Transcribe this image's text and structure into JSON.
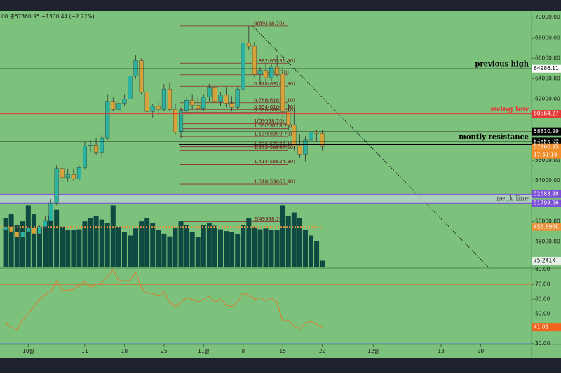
{
  "chart_data": {
    "type": "candlestick",
    "header": "00  종57360.95  −1300.44 (−2.22%)",
    "up_color": "#2ab3a0",
    "down_color": "#d6a23a",
    "open": [
      49200,
      49500,
      49000,
      48500,
      49000,
      49400,
      48800,
      49500,
      50100,
      51800,
      55200,
      54300,
      54600,
      54200,
      55300,
      57400,
      57500,
      56800,
      58200,
      61800,
      61000,
      61600,
      62000,
      64300,
      65800,
      62700,
      60800,
      61300,
      61000,
      63000,
      61000,
      58800,
      60900,
      61900,
      61400,
      61100,
      62200,
      63200,
      61800,
      62400,
      61600,
      61200,
      63000,
      67500,
      67200,
      64500,
      64800,
      64100,
      65200,
      64500,
      60800,
      59500,
      57400,
      56600,
      58000,
      58800,
      58661.39
    ],
    "high": [
      49800,
      50000,
      49500,
      49200,
      49800,
      50200,
      49600,
      50500,
      52200,
      55500,
      55800,
      55200,
      55200,
      55600,
      57800,
      58000,
      58200,
      58500,
      62500,
      62200,
      62000,
      62500,
      64500,
      66300,
      66000,
      63000,
      61500,
      61800,
      63500,
      63600,
      61500,
      61200,
      62200,
      62500,
      62300,
      62500,
      63500,
      63600,
      62700,
      63200,
      62300,
      63200,
      68000,
      69198.7,
      67600,
      65200,
      65600,
      65500,
      66300,
      65200,
      61500,
      61000,
      58600,
      58400,
      59200,
      59000,
      59000
    ],
    "low": [
      48600,
      48800,
      48200,
      48000,
      48800,
      48600,
      48400,
      49000,
      49800,
      51600,
      53800,
      53900,
      54000,
      54000,
      55100,
      56800,
      56500,
      56300,
      58000,
      60800,
      60600,
      61300,
      61800,
      64000,
      62500,
      60500,
      60200,
      60500,
      60800,
      60800,
      58500,
      58200,
      60500,
      61000,
      60600,
      60900,
      61800,
      61500,
      61300,
      61200,
      60800,
      61000,
      62800,
      66800,
      64200,
      63400,
      63700,
      63800,
      64200,
      60200,
      59000,
      57000,
      56200,
      55900,
      57200,
      57800,
      57000
    ],
    "close": [
      49500,
      49000,
      48500,
      49000,
      49400,
      48800,
      49500,
      50100,
      51800,
      55200,
      54300,
      54600,
      54200,
      55300,
      57400,
      57500,
      56800,
      58200,
      61800,
      61000,
      61600,
      62000,
      64300,
      65800,
      62700,
      60800,
      61300,
      61000,
      63000,
      61000,
      58800,
      60900,
      61900,
      61400,
      61100,
      62200,
      63200,
      61800,
      62400,
      61600,
      61200,
      63000,
      67500,
      67200,
      64500,
      64800,
      64100,
      65200,
      64500,
      60800,
      59500,
      57400,
      56600,
      58000,
      58800,
      58661.39,
      57360.95
    ],
    "countdown": "17:51:18",
    "ylim": [
      45500,
      70700
    ],
    "yticks": [
      {
        "value": 70000,
        "label": "70000.00"
      },
      {
        "value": 68000,
        "label": "68000.00"
      },
      {
        "value": 66000,
        "label": "66000.00"
      },
      {
        "value": 64000,
        "label": "64000.00"
      },
      {
        "value": 62000,
        "label": "62000.00"
      },
      {
        "value": 56000,
        "label": "56000.00"
      },
      {
        "value": 54000,
        "label": "54000.00"
      },
      {
        "value": 50000,
        "label": "50000.00"
      },
      {
        "value": 48000,
        "label": "48000.00"
      }
    ],
    "xlim": [
      -1,
      93
    ],
    "xticks": [
      {
        "value": 4,
        "label": "10월"
      },
      {
        "value": 14,
        "label": "11"
      },
      {
        "value": 21,
        "label": "18"
      },
      {
        "value": 28,
        "label": "25"
      },
      {
        "value": 35,
        "label": "11월"
      },
      {
        "value": 42,
        "label": "8"
      },
      {
        "value": 49,
        "label": "15"
      },
      {
        "value": 56,
        "label": "22"
      },
      {
        "value": 65,
        "label": "12월"
      },
      {
        "value": 77,
        "label": "13"
      },
      {
        "value": 84,
        "label": "20"
      }
    ],
    "levels": [
      {
        "name": "previous high",
        "value": 64986.11,
        "label": "64986.11",
        "color": "#000000"
      },
      {
        "name": "swing low",
        "value": 60564.27,
        "label": "60564.27",
        "color": "#e53935"
      },
      {
        "value": 58810.99,
        "label": "58810.99",
        "color": "#000000"
      },
      {
        "name": "montly resistance",
        "value": 57865,
        "label": "57865.00",
        "color": "#000000"
      },
      {
        "value": 57550,
        "label": "57550.00",
        "color": "#000000"
      }
    ],
    "neck_line": {
      "name": "neck line",
      "color": "#7b4fd6",
      "upper": {
        "value": 52683.98,
        "label": "52683.98"
      },
      "lower": {
        "value": 51799.56,
        "label": "51799.56"
      }
    },
    "fib_levels": [
      {
        "value": 69198.7,
        "label": "0(69198.70)"
      },
      {
        "value": 65531.5,
        "label": "0.382(65531.50)"
      },
      {
        "value": 64398.7,
        "label": "0.5(64398.70)"
      },
      {
        "value": 63265.9,
        "label": "0.618(63265.90)"
      },
      {
        "value": 61653.1,
        "label": "0.786(61653.10)"
      },
      {
        "value": 61000.3,
        "label": "0.854(61000.30)"
      },
      {
        "value": 60693.1,
        "label": "0.886(60693.10)"
      },
      {
        "value": 59598.7,
        "label": "1(59598.70)"
      },
      {
        "value": 59118.7,
        "label": "1.05(59118.70)"
      },
      {
        "value": 58350.7,
        "label": "1.13(58350.70)"
      },
      {
        "value": 57333.1,
        "label": "1.236(57333.10)"
      },
      {
        "value": 56987.5,
        "label": "1.272(56987.50)"
      },
      {
        "value": 55624.3,
        "label": "1.414(55624.30)"
      },
      {
        "value": 53665.9,
        "label": "1.618(53665.90)"
      },
      {
        "value": 49998.7,
        "label": "2(49998.70)"
      }
    ],
    "volume": [
      560,
      600,
      480,
      520,
      700,
      600,
      450,
      530,
      580,
      650,
      460,
      420,
      420,
      430,
      520,
      560,
      580,
      540,
      500,
      700,
      460,
      400,
      360,
      440,
      520,
      560,
      500,
      420,
      380,
      350,
      450,
      520,
      480,
      400,
      340,
      480,
      500,
      470,
      430,
      410,
      400,
      380,
      480,
      560,
      460,
      430,
      440,
      420,
      420,
      700,
      580,
      620,
      560,
      420,
      360,
      300,
      75.241
    ],
    "volume_last_label": "75.241K",
    "volume_color": "#0d4a42",
    "volume_ylim": [
      0,
      2900
    ],
    "volume_ma": {
      "value": 455.896,
      "label": "455.896K",
      "color": "#e8923a"
    },
    "rsi": {
      "values": [
        44,
        41,
        40,
        46,
        50,
        55,
        60,
        63,
        65,
        72,
        66,
        66,
        67,
        69,
        72,
        68,
        70,
        71,
        75,
        80,
        73,
        72,
        73,
        78,
        68,
        64,
        64,
        62,
        65,
        58,
        55,
        58,
        61,
        60,
        58,
        60,
        62,
        58,
        60,
        56,
        55,
        58,
        64,
        63,
        60,
        61,
        59,
        61,
        58,
        45,
        46,
        42,
        40,
        44,
        45,
        43,
        41.01
      ],
      "color": "#e07a2e",
      "ylim": [
        29.5,
        81
      ],
      "yticks": [
        {
          "value": 80,
          "label": "80.00"
        },
        {
          "value": 70,
          "label": "70.00"
        },
        {
          "value": 60,
          "label": "60.00"
        },
        {
          "value": 50,
          "label": "50.00"
        },
        {
          "value": 40,
          "label": "40.00"
        },
        {
          "value": 30,
          "label": "30.00"
        }
      ],
      "upper": 70,
      "middle": 50,
      "lower": 30
    }
  }
}
